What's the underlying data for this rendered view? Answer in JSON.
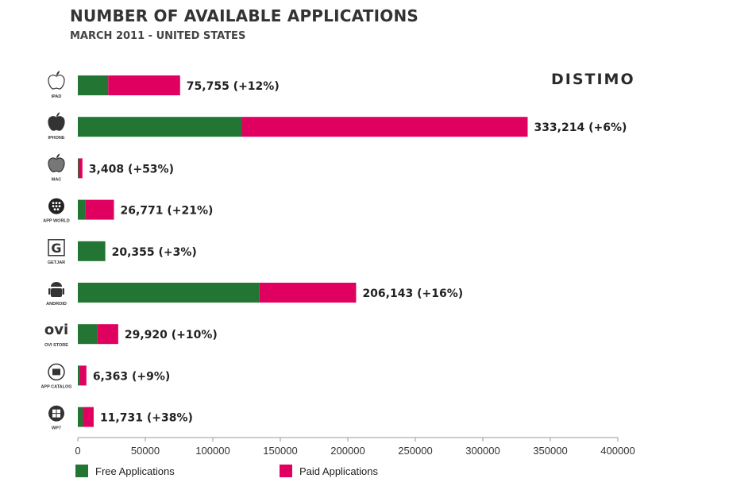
{
  "header": {
    "title": "NUMBER OF AVAILABLE APPLICATIONS",
    "subtitle": "MARCH 2011  - UNITED STATES",
    "brand": "DISTIMO"
  },
  "colors": {
    "free": "#237534",
    "paid": "#e0005f",
    "axis": "#9a9a9a"
  },
  "chart_data": {
    "type": "bar",
    "orientation": "horizontal",
    "stacked": true,
    "title": "NUMBER OF AVAILABLE APPLICATIONS",
    "subtitle": "MARCH 2011  - UNITED STATES",
    "categories": [
      "IPAD",
      "IPHONE",
      "MAC",
      "APP WORLD",
      "GETJAR",
      "ANDROID",
      "OVI STORE",
      "APP CATALOG",
      "WP7"
    ],
    "icons": [
      "apple-outline-icon",
      "apple-solid-icon",
      "apple-metal-icon",
      "blackberry-icon",
      "getjar-icon",
      "android-icon",
      "ovi-icon",
      "palm-icon",
      "windows-icon"
    ],
    "series": [
      {
        "name": "Free Applications",
        "values": [
          22500,
          121500,
          600,
          5800,
          20355,
          134600,
          14500,
          1500,
          3800
        ]
      },
      {
        "name": "Paid Applications",
        "values": [
          53255,
          211714,
          2808,
          20971,
          0,
          71543,
          15420,
          4863,
          7931
        ]
      }
    ],
    "totals": [
      75755,
      333214,
      3408,
      26771,
      20355,
      206143,
      29920,
      6363,
      11731
    ],
    "labels": [
      "75,755 (+12%)",
      "333,214 (+6%)",
      "3,408 (+53%)",
      "26,771 (+21%)",
      "20,355 (+3%)",
      "206,143 (+16%)",
      "29,920 (+10%)",
      "6,363 (+9%)",
      "11,731 (+38%)"
    ],
    "xlim": [
      0,
      400000
    ],
    "xticks": [
      "0",
      "50000",
      "100000",
      "150000",
      "200000",
      "250000",
      "300000",
      "350000",
      "400000"
    ],
    "grid": false,
    "legend": "bottom-left"
  }
}
